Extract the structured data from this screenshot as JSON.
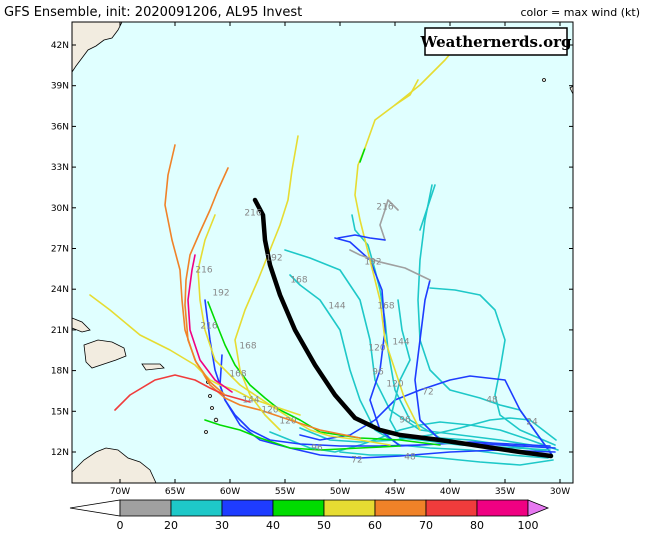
{
  "header": {
    "title": "GFS Ensemble, init: 2020091206, AL95 Invest",
    "legend_title": "color = max wind (kt)",
    "watermark": "Weathernerds.org"
  },
  "map": {
    "lat_labels": [
      "42N",
      "39N",
      "36N",
      "33N",
      "30N",
      "27N",
      "24N",
      "21N",
      "18N",
      "15N",
      "12N"
    ],
    "lon_labels": [
      "70W",
      "65W",
      "60W",
      "55W",
      "50W",
      "45W",
      "40W",
      "35W",
      "30W"
    ],
    "hour_labels": [
      "216",
      "192",
      "168",
      "144",
      "216",
      "192",
      "168",
      "144",
      "120",
      "96",
      "120",
      "72",
      "48",
      "24",
      "96",
      "216",
      "192",
      "216",
      "168",
      "168",
      "144",
      "120",
      "120",
      "96",
      "72",
      "48"
    ]
  },
  "colorbar": {
    "labels": [
      "0",
      "20",
      "30",
      "40",
      "50",
      "60",
      "70",
      "80",
      "100"
    ]
  }
}
